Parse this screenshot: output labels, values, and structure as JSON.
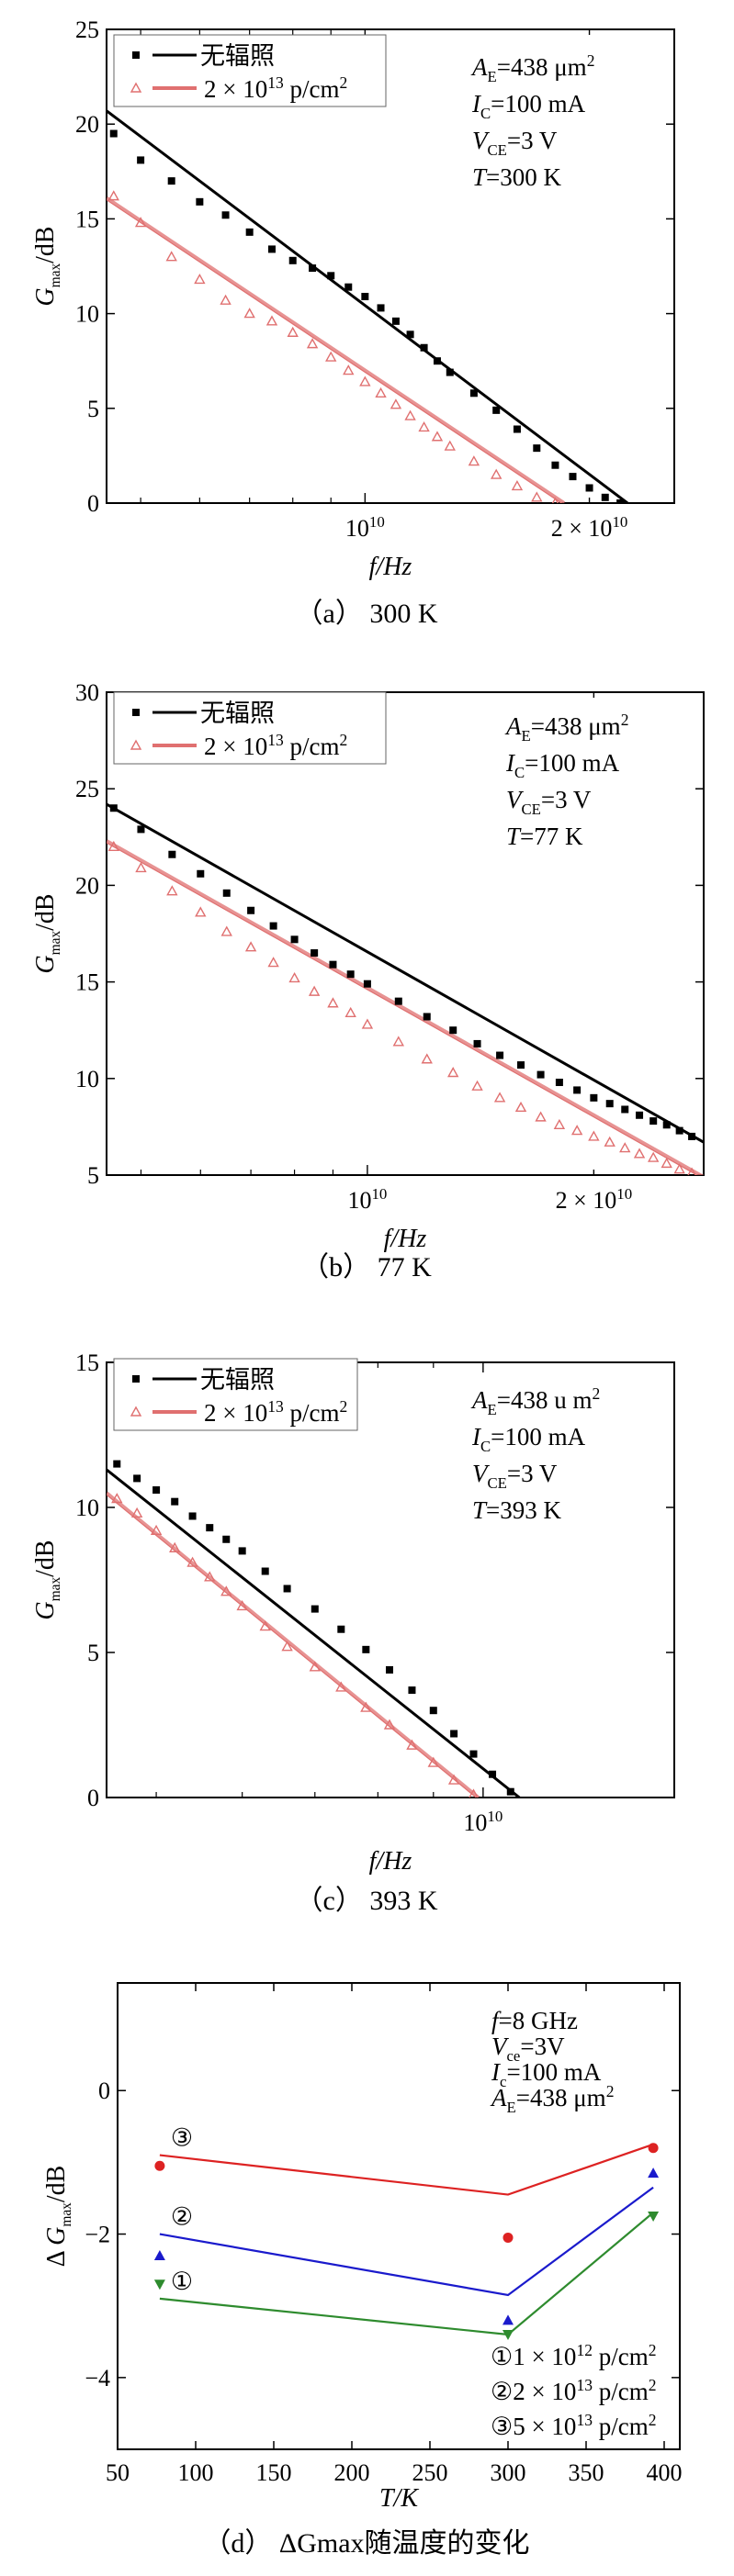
{
  "chart_data": [
    {
      "type": "scatter",
      "panel": "a",
      "caption": "（a） 300 K",
      "xlabel": "f/Hz",
      "ylabel": "Gmax/dB",
      "xscale": "log",
      "xlim": [
        4500000000,
        26000000000
      ],
      "ylim": [
        0,
        25
      ],
      "yticks": [
        0,
        5,
        10,
        15,
        20,
        25
      ],
      "xtick_labels": [
        {
          "value": 10000000000,
          "label": "10^10"
        },
        {
          "value": 20000000000,
          "label": "2×10^10"
        }
      ],
      "legend": [
        "无辐照",
        "2×10^13 p/cm^2"
      ],
      "annotations": [
        "AE=438 μm2",
        "IC=100 mA",
        "VCE=3 V",
        "T=300 K"
      ],
      "series": [
        {
          "name": "无辐照",
          "marker": "square",
          "color": "#000000",
          "x": [
            4600000000,
            5000000000,
            5500000000,
            6000000000,
            6500000000,
            7000000000,
            7500000000,
            8000000000,
            8500000000,
            9000000000,
            9500000000,
            10000000000,
            10500000000,
            11000000000,
            11500000000,
            12000000000,
            12500000000,
            13000000000,
            14000000000,
            15000000000,
            16000000000,
            17000000000,
            18000000000,
            19000000000,
            20000000000,
            21000000000,
            22000000000
          ],
          "y": [
            19.5,
            18.1,
            17.0,
            15.9,
            15.2,
            14.3,
            13.4,
            12.8,
            12.4,
            12.0,
            11.4,
            10.9,
            10.3,
            9.6,
            8.9,
            8.2,
            7.5,
            6.9,
            5.8,
            4.9,
            3.9,
            2.9,
            2.0,
            1.4,
            0.8,
            0.3,
            0.0
          ]
        },
        {
          "name": "2×10^13 p/cm^2",
          "marker": "triangle-open",
          "color": "#e07070",
          "x": [
            4600000000,
            5000000000,
            5500000000,
            6000000000,
            6500000000,
            7000000000,
            7500000000,
            8000000000,
            8500000000,
            9000000000,
            9500000000,
            10000000000,
            10500000000,
            11000000000,
            11500000000,
            12000000000,
            12500000000,
            13000000000,
            14000000000,
            15000000000,
            16000000000,
            17000000000,
            18000000000
          ],
          "y": [
            16.2,
            14.8,
            13.0,
            11.8,
            10.7,
            10.0,
            9.6,
            9.0,
            8.4,
            7.7,
            7.0,
            6.4,
            5.8,
            5.2,
            4.6,
            4.0,
            3.5,
            3.0,
            2.2,
            1.5,
            0.9,
            0.3,
            0.0
          ]
        }
      ],
      "fit_lines": [
        {
          "series": "无辐照",
          "color": "#000000",
          "x": [
            4500000000,
            22500000000
          ],
          "y": [
            20.7,
            0.0
          ]
        },
        {
          "series": "2×10^13 p/cm^2",
          "color": "#e07070",
          "x": [
            4500000000,
            18500000000
          ],
          "y": [
            16.1,
            0.0
          ]
        }
      ]
    },
    {
      "type": "scatter",
      "panel": "b",
      "caption": "（b） 77 K",
      "xlabel": "f/Hz",
      "ylabel": "Gmax/dB",
      "xscale": "log",
      "xlim": [
        4500000000,
        28000000000
      ],
      "ylim": [
        5,
        30
      ],
      "yticks": [
        5,
        10,
        15,
        20,
        25,
        30
      ],
      "xtick_labels": [
        {
          "value": 10000000000,
          "label": "10^10"
        },
        {
          "value": 20000000000,
          "label": "2×10^10"
        }
      ],
      "legend": [
        "无辐照",
        "2×10^13 p/cm^2"
      ],
      "annotations": [
        "AE=438 μm2",
        "IC=100 mA",
        "VCE=3 V",
        "T=77 K"
      ],
      "series": [
        {
          "name": "无辐照",
          "marker": "square",
          "color": "#000000",
          "x": [
            4600000000,
            5000000000,
            5500000000,
            6000000000,
            6500000000,
            7000000000,
            7500000000,
            8000000000,
            8500000000,
            9000000000,
            9500000000,
            10000000000,
            11000000000,
            12000000000,
            13000000000,
            14000000000,
            15000000000,
            16000000000,
            17000000000,
            18000000000,
            19000000000,
            20000000000,
            21000000000,
            22000000000,
            23000000000,
            24000000000,
            25000000000,
            26000000000,
            27000000000
          ],
          "y": [
            24.0,
            22.9,
            21.6,
            20.6,
            19.6,
            18.7,
            17.9,
            17.2,
            16.5,
            15.9,
            15.4,
            14.9,
            14.0,
            13.2,
            12.5,
            11.8,
            11.2,
            10.7,
            10.2,
            9.8,
            9.4,
            9.0,
            8.7,
            8.4,
            8.1,
            7.8,
            7.6,
            7.3,
            7.0
          ]
        },
        {
          "name": "2×10^13 p/cm^2",
          "marker": "triangle-open",
          "color": "#e07070",
          "x": [
            4600000000,
            5000000000,
            5500000000,
            6000000000,
            6500000000,
            7000000000,
            7500000000,
            8000000000,
            8500000000,
            9000000000,
            9500000000,
            10000000000,
            11000000000,
            12000000000,
            13000000000,
            14000000000,
            15000000000,
            16000000000,
            17000000000,
            18000000000,
            19000000000,
            20000000000,
            21000000000,
            22000000000,
            23000000000,
            24000000000,
            25000000000,
            26000000000,
            27000000000
          ],
          "y": [
            22.0,
            20.9,
            19.7,
            18.6,
            17.6,
            16.8,
            16.0,
            15.2,
            14.5,
            13.9,
            13.4,
            12.8,
            11.9,
            11.0,
            10.3,
            9.6,
            9.0,
            8.5,
            8.0,
            7.6,
            7.3,
            7.0,
            6.7,
            6.4,
            6.1,
            5.9,
            5.6,
            5.3,
            5.1
          ]
        }
      ],
      "fit_lines": [
        {
          "series": "无辐照",
          "color": "#000000",
          "x": [
            4500000000,
            28000000000
          ],
          "y": [
            24.2,
            6.7
          ]
        },
        {
          "series": "2×10^13 p/cm^2",
          "color": "#e07070",
          "x": [
            4500000000,
            28000000000
          ],
          "y": [
            22.3,
            4.9
          ]
        }
      ]
    },
    {
      "type": "scatter",
      "panel": "c",
      "caption": "（c） 393 K",
      "xlabel": "f/Hz",
      "ylabel": "Gmax/dB",
      "xscale": "log",
      "xlim": [
        4500000000,
        15000000000
      ],
      "ylim": [
        0,
        15
      ],
      "yticks": [
        0,
        5,
        10,
        15
      ],
      "xtick_labels": [
        {
          "value": 10000000000,
          "label": "10^10"
        }
      ],
      "legend": [
        "无辐照",
        "2×10^13 p/cm^2"
      ],
      "annotations": [
        "AE=438 u m2",
        "IC=100 mA",
        "VCE=3 V",
        "T=393 K"
      ],
      "series": [
        {
          "name": "无辐照",
          "marker": "square",
          "color": "#000000",
          "x": [
            4600000000,
            4800000000,
            5000000000,
            5200000000,
            5400000000,
            5600000000,
            5800000000,
            6000000000,
            6300000000,
            6600000000,
            7000000000,
            7400000000,
            7800000000,
            8200000000,
            8600000000,
            9000000000,
            9400000000,
            9800000000,
            10200000000,
            10600000000
          ],
          "y": [
            11.5,
            11.0,
            10.6,
            10.2,
            9.7,
            9.3,
            8.9,
            8.5,
            7.8,
            7.2,
            6.5,
            5.8,
            5.1,
            4.4,
            3.7,
            3.0,
            2.2,
            1.5,
            0.8,
            0.2
          ]
        },
        {
          "name": "2×10^13 p/cm^2",
          "marker": "triangle-open",
          "color": "#e07070",
          "x": [
            4600000000,
            4800000000,
            5000000000,
            5200000000,
            5400000000,
            5600000000,
            5800000000,
            6000000000,
            6300000000,
            6600000000,
            7000000000,
            7400000000,
            7800000000,
            8200000000,
            8600000000,
            9000000000,
            9400000000,
            9800000000
          ],
          "y": [
            10.3,
            9.8,
            9.2,
            8.6,
            8.1,
            7.6,
            7.1,
            6.6,
            5.9,
            5.2,
            4.5,
            3.8,
            3.1,
            2.5,
            1.8,
            1.2,
            0.6,
            0.1
          ]
        }
      ],
      "fit_lines": [
        {
          "series": "无辐照",
          "color": "#000000",
          "x": [
            4500000000,
            10800000000
          ],
          "y": [
            11.3,
            0.0
          ]
        },
        {
          "series": "2×10^13 p/cm^2",
          "color": "#e07070",
          "x": [
            4500000000,
            9900000000
          ],
          "y": [
            10.5,
            0.0
          ]
        }
      ]
    },
    {
      "type": "line",
      "panel": "d",
      "caption": "（d） ΔGmax随温度的变化",
      "xlabel": "T/K",
      "ylabel": "ΔGmax/dB",
      "xlim": [
        50,
        410
      ],
      "ylim": [
        -5,
        1.5
      ],
      "xticks": [
        50,
        100,
        150,
        200,
        250,
        300,
        350,
        400
      ],
      "yticks": [
        -4,
        -2,
        0
      ],
      "annotations": [
        "f=8 GHz",
        "Vce=3V",
        "Ic=100 mA",
        "AE=438 μm2"
      ],
      "legend_text": [
        "①1×10^12 p/cm^2",
        "②2×10^13 p/cm^2",
        "③5×10^13 p/cm^2"
      ],
      "series": [
        {
          "name": "①1×10^12 p/cm^2",
          "label": "①",
          "color": "#2e8b2e",
          "marker": "triangle-down",
          "x": [
            77,
            300,
            393
          ],
          "y": [
            -2.7,
            -3.4,
            -1.75
          ],
          "line_x": [
            77,
            300,
            393
          ],
          "line_y": [
            -2.9,
            -3.4,
            -1.7
          ]
        },
        {
          "name": "②2×10^13 p/cm^2",
          "label": "②",
          "color": "#1a1acc",
          "marker": "triangle-up",
          "x": [
            77,
            300,
            393
          ],
          "y": [
            -2.3,
            -3.2,
            -1.15
          ],
          "line_x": [
            77,
            300,
            393
          ],
          "line_y": [
            -2.0,
            -2.85,
            -1.35
          ]
        },
        {
          "name": "③5×10^13 p/cm^2",
          "label": "③",
          "color": "#dd2222",
          "marker": "circle",
          "x": [
            77,
            300,
            393
          ],
          "y": [
            -1.05,
            -2.05,
            -0.8
          ],
          "line_x": [
            77,
            300,
            393
          ],
          "line_y": [
            -0.9,
            -1.45,
            -0.75
          ]
        }
      ]
    }
  ]
}
